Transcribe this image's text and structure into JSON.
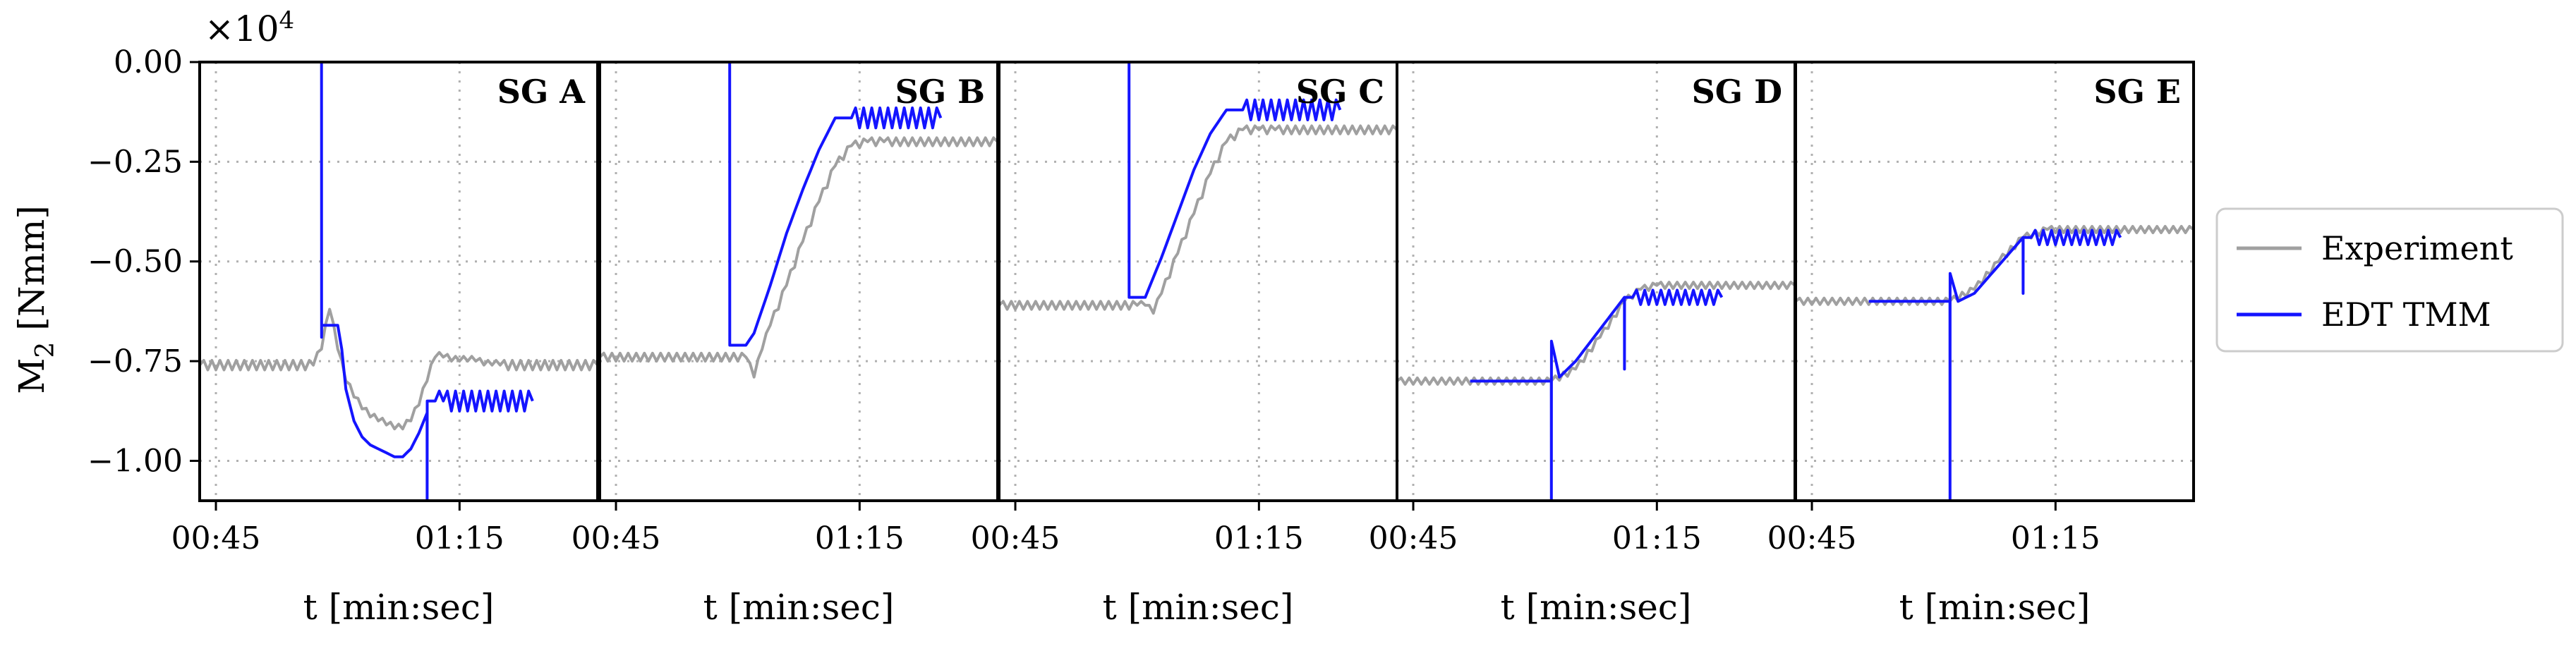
{
  "chart_data": {
    "type": "line",
    "ylabel": "M",
    "ylabel_sub": "2",
    "ylabel_unit": " [Nmm]",
    "y_multiplier": "×10",
    "y_multiplier_exp": "4",
    "ylim": [
      -1.1,
      0.0
    ],
    "yticks": [
      0.0,
      -0.25,
      -0.5,
      -0.75,
      -1.0
    ],
    "ytick_labels": [
      "0.00",
      "−0.25",
      "−0.50",
      "−0.75",
      "−1.00"
    ],
    "xlabel": "t",
    "xlabel_unit": " [min:sec]",
    "xlim": [
      43,
      92
    ],
    "xticks": [
      45,
      75
    ],
    "xtick_labels": [
      "00:45",
      "01:15"
    ],
    "grid": true,
    "legend": {
      "placement": "right",
      "entries": [
        {
          "name": "Experiment",
          "color": "#a0a0a0"
        },
        {
          "name": "EDT TMM",
          "color": "#1414ff"
        }
      ]
    },
    "panels": [
      {
        "label": "SG A",
        "series": [
          {
            "name": "Experiment",
            "x": [
              43,
              57,
              58,
              59,
              60,
              61,
              62,
              63,
              64,
              65,
              66,
              67,
              68,
              69,
              70,
              71,
              72,
              73,
              74,
              75,
              76,
              77,
              78,
              79,
              80,
              92
            ],
            "y": [
              -0.76,
              -0.76,
              -0.72,
              -0.62,
              -0.72,
              -0.8,
              -0.84,
              -0.87,
              -0.89,
              -0.9,
              -0.91,
              -0.92,
              -0.92,
              -0.9,
              -0.86,
              -0.8,
              -0.74,
              -0.74,
              -0.75,
              -0.75,
              -0.75,
              -0.75,
              -0.76,
              -0.76,
              -0.76,
              -0.76
            ],
            "osc": 0.012
          },
          {
            "name": "EDT TMM",
            "x": [
              58,
              58.01,
              58.02,
              60,
              60.5,
              61,
              62,
              63,
              64,
              65,
              66,
              67,
              68,
              69,
              70,
              71,
              71.01,
              71.02,
              72,
              73,
              84
            ],
            "y": [
              0.0,
              -0.69,
              -0.66,
              -0.66,
              -0.72,
              -0.82,
              -0.9,
              -0.94,
              -0.96,
              -0.97,
              -0.98,
              -0.99,
              -0.99,
              -0.97,
              -0.93,
              -0.88,
              -1.1,
              -0.85,
              -0.85,
              -0.85,
              -0.85
            ],
            "osc_from": 72,
            "osc": 0.025
          }
        ]
      },
      {
        "label": "SG B",
        "series": [
          {
            "name": "Experiment",
            "x": [
              43,
              61,
              62,
              63,
              64,
              66,
              68,
              70,
              72,
              74,
              76,
              78,
              92
            ],
            "y": [
              -0.74,
              -0.74,
              -0.79,
              -0.72,
              -0.66,
              -0.56,
              -0.45,
              -0.35,
              -0.26,
              -0.21,
              -0.2,
              -0.2,
              -0.2
            ],
            "osc": 0.01
          },
          {
            "name": "EDT TMM",
            "x": [
              59,
              59.01,
              59.02,
              61,
              62,
              64,
              66,
              68,
              70,
              72,
              74,
              85
            ],
            "y": [
              0.0,
              -0.71,
              -0.71,
              -0.71,
              -0.68,
              -0.56,
              -0.43,
              -0.32,
              -0.22,
              -0.14,
              -0.14,
              -0.14
            ],
            "osc_from": 74,
            "osc": 0.025
          }
        ]
      },
      {
        "label": "SG C",
        "series": [
          {
            "name": "Experiment",
            "x": [
              43,
              60,
              61,
              62,
              63,
              65,
              67,
              69,
              71,
              73,
              75,
              77,
              92
            ],
            "y": [
              -0.61,
              -0.61,
              -0.61,
              -0.63,
              -0.58,
              -0.48,
              -0.38,
              -0.28,
              -0.2,
              -0.17,
              -0.17,
              -0.17,
              -0.17
            ],
            "osc": 0.01
          },
          {
            "name": "EDT TMM",
            "x": [
              59,
              59.01,
              59.02,
              61,
              63,
              65,
              67,
              69,
              71,
              73,
              85
            ],
            "y": [
              0.0,
              -0.59,
              -0.59,
              -0.59,
              -0.49,
              -0.38,
              -0.27,
              -0.18,
              -0.12,
              -0.12,
              -0.12
            ],
            "osc_from": 73,
            "osc": 0.025
          }
        ]
      },
      {
        "label": "SG D",
        "series": [
          {
            "name": "Experiment",
            "x": [
              43,
              62,
              65,
              68,
              71,
              73,
              75,
              92
            ],
            "y": [
              -0.8,
              -0.8,
              -0.77,
              -0.69,
              -0.6,
              -0.57,
              -0.56,
              -0.56
            ],
            "osc": 0.008
          },
          {
            "name": "EDT TMM",
            "x": [
              52,
              62,
              62.01,
              62.02,
              63,
              65,
              68,
              71,
              71.01,
              71.02,
              72,
              83
            ],
            "y": [
              -0.8,
              -0.8,
              -1.1,
              -0.7,
              -0.79,
              -0.75,
              -0.67,
              -0.59,
              -0.77,
              -0.59,
              -0.59,
              -0.59
            ],
            "osc_from": 72,
            "osc": 0.018
          }
        ]
      },
      {
        "label": "SG E",
        "series": [
          {
            "name": "Experiment",
            "x": [
              43,
              62,
              65,
              68,
              71,
              74,
              92
            ],
            "y": [
              -0.6,
              -0.6,
              -0.57,
              -0.5,
              -0.44,
              -0.42,
              -0.42
            ],
            "osc": 0.008
          },
          {
            "name": "EDT TMM",
            "x": [
              52,
              62,
              62.01,
              62.02,
              63,
              65,
              68,
              71,
              71.01,
              71.02,
              72,
              83
            ],
            "y": [
              -0.6,
              -0.6,
              -1.1,
              -0.53,
              -0.6,
              -0.58,
              -0.51,
              -0.44,
              -0.58,
              -0.44,
              -0.44,
              -0.44
            ],
            "osc_from": 72,
            "osc": 0.018
          }
        ]
      }
    ]
  }
}
